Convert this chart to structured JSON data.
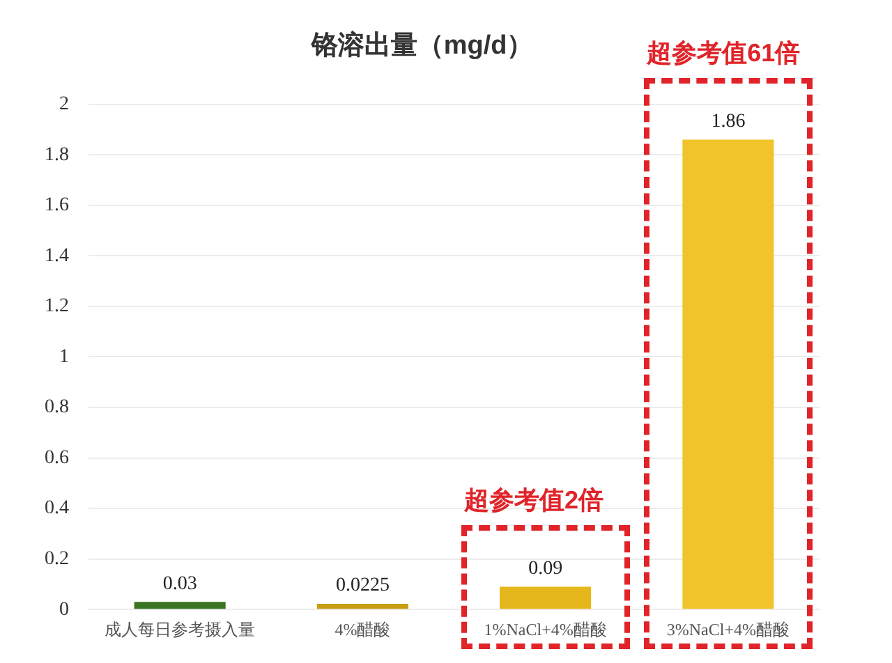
{
  "chart_data": {
    "type": "bar",
    "title": "铬溶出量（mg/d）",
    "categories": [
      "成人每日参考摄入量",
      "4%醋酸",
      "1%NaCl+4%醋酸",
      "3%NaCl+4%醋酸"
    ],
    "values": [
      0.03,
      0.0225,
      0.09,
      1.86
    ],
    "colors": [
      "#3b7423",
      "#c99d12",
      "#e6b71c",
      "#f2c42c"
    ],
    "ylim": [
      0,
      2
    ],
    "yticks": [
      0,
      0.2,
      0.4,
      0.6,
      0.8,
      1,
      1.2,
      1.4,
      1.6,
      1.8,
      2
    ],
    "grid": "y",
    "legend": false,
    "data_labels": true,
    "annotations": [
      "超参考值2倍",
      "超参考值61倍"
    ]
  }
}
